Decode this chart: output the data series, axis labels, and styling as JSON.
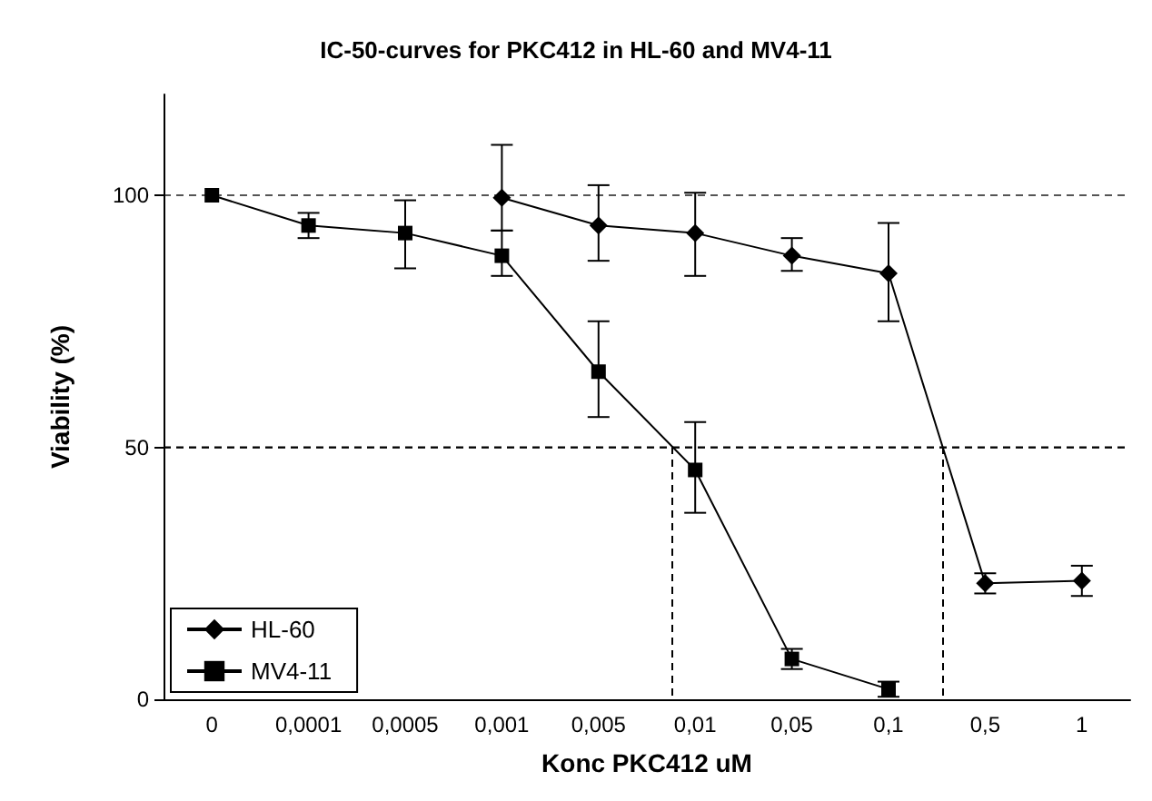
{
  "chart_data": {
    "type": "line",
    "title": "IC-50-curves for PKC412 in HL-60 and MV4-11",
    "xlabel": "Konc PKC412 uM",
    "ylabel": "Viability (%)",
    "categories": [
      "0",
      "0,0001",
      "0,0005",
      "0,001",
      "0,005",
      "0,01",
      "0,05",
      "0,1",
      "0,5",
      "1"
    ],
    "series": [
      {
        "name": "HL-60",
        "color": "#000000",
        "marker": "diamond",
        "values": [
          null,
          null,
          null,
          99.5,
          94,
          92.5,
          88,
          84.5,
          23,
          23.5
        ],
        "errors": [
          null,
          null,
          null,
          [
            93,
            110
          ],
          [
            87,
            102
          ],
          [
            84,
            100.5
          ],
          [
            85,
            91.5
          ],
          [
            75,
            94.5
          ],
          [
            21,
            25
          ],
          [
            20.5,
            26.5
          ]
        ]
      },
      {
        "name": "MV4-11",
        "color": "#000000",
        "marker": "square",
        "values": [
          100,
          94,
          92.5,
          88,
          65,
          45.5,
          8,
          2,
          null,
          null
        ],
        "errors": [
          null,
          [
            91.5,
            96.5
          ],
          [
            85.5,
            99
          ],
          [
            84,
            93
          ],
          [
            56,
            75
          ],
          [
            37,
            55
          ],
          [
            6,
            10
          ],
          [
            0.5,
            3.5
          ],
          null,
          null
        ]
      }
    ],
    "ylim": [
      0,
      120
    ],
    "yticks": [
      0,
      50,
      100
    ],
    "grid": "y",
    "legend": "bottom left",
    "line_style": "solid",
    "ref_lines": [
      {
        "axis": "y",
        "value": 50,
        "line_style": "dashed",
        "color": "#000000"
      }
    ]
  }
}
